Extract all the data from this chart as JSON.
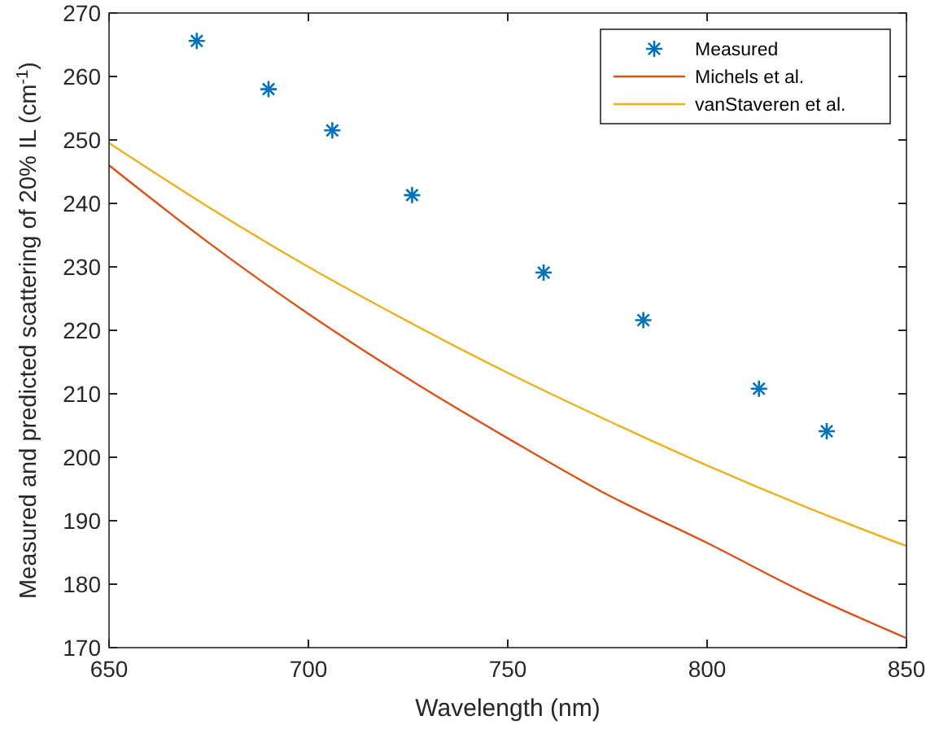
{
  "chart_data": {
    "type": "line",
    "xlabel": "Wavelength (nm)",
    "ylabel": "Measured and predicted scattering of 20% IL (cm$^{-1}$)",
    "xlim": [
      650,
      850
    ],
    "xticks": [
      650,
      700,
      750,
      800,
      850
    ],
    "ylim": [
      170,
      270
    ],
    "yticks": [
      170,
      180,
      190,
      200,
      210,
      220,
      230,
      240,
      250,
      260,
      270
    ],
    "legend": "top right",
    "grid": false,
    "series": [
      {
        "name": "Measured",
        "type": "scatter",
        "marker": "cross",
        "color": "#0072bd",
        "x": [
          672,
          690,
          706,
          726,
          759,
          784,
          813,
          830
        ],
        "values": [
          265.6,
          258.0,
          251.5,
          241.3,
          229.1,
          221.6,
          210.8,
          204.1
        ]
      },
      {
        "name": "Michels et al.",
        "color": "#d95319",
        "x": [
          650,
          675,
          700,
          725,
          750,
          775,
          800,
          825,
          850
        ],
        "values": [
          246,
          233.8,
          222.6,
          212.4,
          203,
          194.1,
          186.5,
          178.5,
          171.5
        ]
      },
      {
        "name": "vanStaveren et al.",
        "color": "#edb120",
        "x": [
          650,
          675,
          700,
          725,
          750,
          775,
          800,
          825,
          850
        ],
        "values": [
          249.5,
          239.4,
          230,
          221.4,
          213.3,
          205.8,
          198.7,
          192.1,
          186
        ]
      }
    ]
  }
}
